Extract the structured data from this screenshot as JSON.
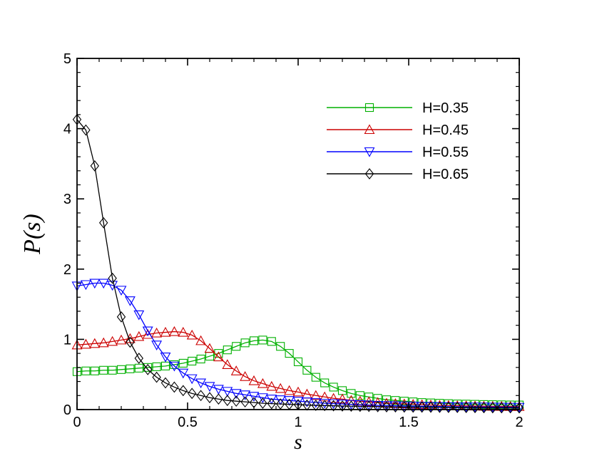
{
  "chart_data": {
    "type": "line",
    "xlabel": "s",
    "ylabel": "P(s)",
    "xlim": [
      0,
      2
    ],
    "ylim": [
      0,
      5
    ],
    "x_ticks": [
      0,
      0.5,
      1,
      1.5,
      2
    ],
    "x_tick_labels": [
      "0",
      "0.5",
      "1",
      "1.5",
      "2"
    ],
    "y_ticks": [
      0,
      1,
      2,
      3,
      4,
      5
    ],
    "y_tick_labels": [
      "0",
      "1",
      "2",
      "3",
      "4",
      "5"
    ],
    "grid": false,
    "legend_position": "top-right",
    "series": [
      {
        "name": "H=0.35",
        "color": "#00b000",
        "marker": "square",
        "x": [
          0,
          0.04,
          0.08,
          0.12,
          0.16,
          0.2,
          0.24,
          0.28,
          0.32,
          0.36,
          0.4,
          0.44,
          0.48,
          0.52,
          0.56,
          0.6,
          0.64,
          0.68,
          0.72,
          0.76,
          0.8,
          0.84,
          0.88,
          0.92,
          0.96,
          1.0,
          1.04,
          1.08,
          1.12,
          1.16,
          1.2,
          1.24,
          1.28,
          1.32,
          1.36,
          1.4,
          1.44,
          1.48,
          1.52,
          1.56,
          1.6,
          1.64,
          1.68,
          1.72,
          1.76,
          1.8,
          1.84,
          1.88,
          1.92,
          1.96,
          2.0
        ],
        "y": [
          0.54,
          0.55,
          0.55,
          0.56,
          0.56,
          0.57,
          0.58,
          0.59,
          0.6,
          0.61,
          0.62,
          0.64,
          0.66,
          0.69,
          0.72,
          0.76,
          0.8,
          0.85,
          0.9,
          0.95,
          0.98,
          0.99,
          0.97,
          0.9,
          0.8,
          0.68,
          0.56,
          0.46,
          0.38,
          0.32,
          0.27,
          0.23,
          0.2,
          0.18,
          0.16,
          0.14,
          0.13,
          0.12,
          0.11,
          0.1,
          0.095,
          0.09,
          0.085,
          0.08,
          0.078,
          0.075,
          0.072,
          0.07,
          0.068,
          0.066,
          0.065
        ]
      },
      {
        "name": "H=0.45",
        "color": "#cc0000",
        "marker": "triangle-up",
        "x": [
          0,
          0.04,
          0.08,
          0.12,
          0.16,
          0.2,
          0.24,
          0.28,
          0.32,
          0.36,
          0.4,
          0.44,
          0.48,
          0.52,
          0.56,
          0.6,
          0.64,
          0.68,
          0.72,
          0.76,
          0.8,
          0.84,
          0.88,
          0.92,
          0.96,
          1.0,
          1.04,
          1.08,
          1.12,
          1.16,
          1.2,
          1.24,
          1.28,
          1.32,
          1.36,
          1.4,
          1.44,
          1.48,
          1.52,
          1.56,
          1.6,
          1.64,
          1.68,
          1.72,
          1.76,
          1.8,
          1.84,
          1.88,
          1.92,
          1.96,
          2.0
        ],
        "y": [
          0.92,
          0.93,
          0.94,
          0.95,
          0.97,
          0.99,
          1.01,
          1.04,
          1.07,
          1.09,
          1.1,
          1.11,
          1.1,
          1.06,
          0.98,
          0.87,
          0.75,
          0.64,
          0.55,
          0.47,
          0.41,
          0.37,
          0.33,
          0.3,
          0.27,
          0.25,
          0.22,
          0.2,
          0.18,
          0.16,
          0.15,
          0.13,
          0.12,
          0.11,
          0.1,
          0.09,
          0.085,
          0.08,
          0.075,
          0.07,
          0.065,
          0.06,
          0.058,
          0.055,
          0.053,
          0.05,
          0.048,
          0.046,
          0.045,
          0.044,
          0.043
        ]
      },
      {
        "name": "H=0.55",
        "color": "#0000ff",
        "marker": "triangle-down",
        "x": [
          0,
          0.04,
          0.08,
          0.12,
          0.16,
          0.2,
          0.24,
          0.28,
          0.32,
          0.36,
          0.4,
          0.44,
          0.48,
          0.52,
          0.56,
          0.6,
          0.64,
          0.68,
          0.72,
          0.76,
          0.8,
          0.84,
          0.88,
          0.92,
          0.96,
          1.0,
          1.04,
          1.08,
          1.12,
          1.16,
          1.2,
          1.24,
          1.28,
          1.32,
          1.36,
          1.4,
          1.44,
          1.48,
          1.52,
          1.56,
          1.6,
          1.64,
          1.68,
          1.72,
          1.76,
          1.8,
          1.84,
          1.88,
          1.92,
          1.96,
          2.0
        ],
        "y": [
          1.76,
          1.78,
          1.8,
          1.8,
          1.77,
          1.7,
          1.55,
          1.35,
          1.12,
          0.92,
          0.75,
          0.62,
          0.52,
          0.44,
          0.38,
          0.33,
          0.29,
          0.26,
          0.23,
          0.21,
          0.19,
          0.17,
          0.15,
          0.14,
          0.13,
          0.12,
          0.11,
          0.1,
          0.09,
          0.085,
          0.08,
          0.075,
          0.07,
          0.065,
          0.06,
          0.058,
          0.055,
          0.052,
          0.05,
          0.048,
          0.046,
          0.044,
          0.042,
          0.04,
          0.039,
          0.038,
          0.037,
          0.036,
          0.035,
          0.034,
          0.033
        ]
      },
      {
        "name": "H=0.65",
        "color": "#000000",
        "marker": "diamond",
        "x": [
          0,
          0.04,
          0.08,
          0.12,
          0.16,
          0.2,
          0.24,
          0.28,
          0.32,
          0.36,
          0.4,
          0.44,
          0.48,
          0.52,
          0.56,
          0.6,
          0.64,
          0.68,
          0.72,
          0.76,
          0.8,
          0.84,
          0.88,
          0.92,
          0.96,
          1.0,
          1.04,
          1.08,
          1.12,
          1.16,
          1.2,
          1.24,
          1.28,
          1.32,
          1.36,
          1.4,
          1.44,
          1.48,
          1.52,
          1.56,
          1.6,
          1.64,
          1.68,
          1.72,
          1.76,
          1.8,
          1.84,
          1.88,
          1.92,
          1.96,
          2.0
        ],
        "y": [
          4.13,
          3.98,
          3.47,
          2.66,
          1.87,
          1.32,
          0.96,
          0.73,
          0.57,
          0.46,
          0.38,
          0.32,
          0.27,
          0.23,
          0.2,
          0.17,
          0.15,
          0.13,
          0.12,
          0.11,
          0.1,
          0.09,
          0.085,
          0.08,
          0.075,
          0.07,
          0.065,
          0.06,
          0.057,
          0.054,
          0.051,
          0.048,
          0.046,
          0.044,
          0.042,
          0.04,
          0.038,
          0.036,
          0.035,
          0.034,
          0.033,
          0.032,
          0.031,
          0.03,
          0.029,
          0.028,
          0.027,
          0.026,
          0.025,
          0.025,
          0.024
        ]
      }
    ]
  }
}
